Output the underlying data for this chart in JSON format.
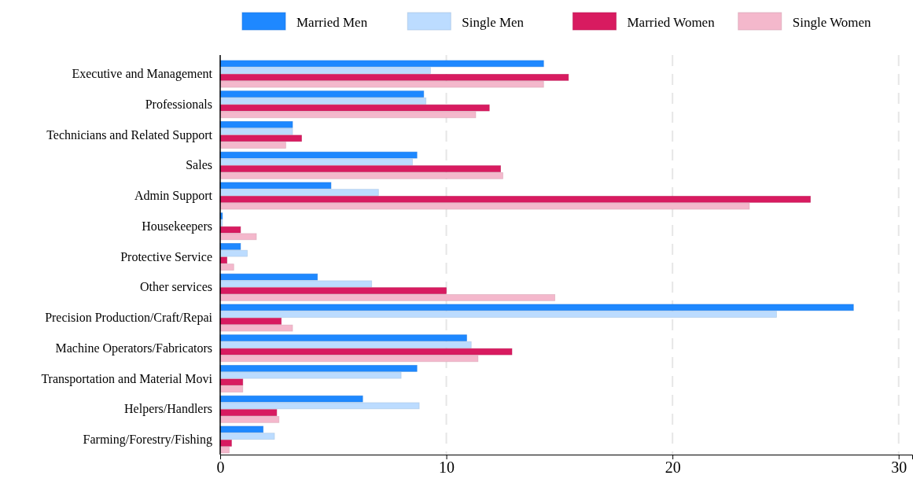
{
  "chart_data": {
    "type": "bar",
    "orientation": "horizontal",
    "categories": [
      "Executive and Management",
      "Professionals",
      "Technicians and Related Support",
      "Sales",
      "Admin Support",
      "Housekeepers",
      "Protective Service",
      "Other services",
      "Precision Production/Craft/Repai",
      "Machine Operators/Fabricators",
      "Transportation and Material Movi",
      "Helpers/Handlers",
      "Farming/Forestry/Fishing"
    ],
    "series": [
      {
        "name": "Married Men",
        "color": "#1e88ff",
        "values": [
          14.3,
          9.0,
          3.2,
          8.7,
          4.9,
          0.1,
          0.9,
          4.3,
          28.0,
          10.9,
          8.7,
          6.3,
          1.9
        ]
      },
      {
        "name": "Single Men",
        "color": "#bcdcff",
        "values": [
          9.3,
          9.1,
          3.2,
          8.5,
          7.0,
          0.1,
          1.2,
          6.7,
          24.6,
          11.1,
          8.0,
          8.8,
          2.4
        ]
      },
      {
        "name": "Married Women",
        "color": "#d81b60",
        "values": [
          15.4,
          11.9,
          3.6,
          12.4,
          26.1,
          0.9,
          0.3,
          10.0,
          2.7,
          12.9,
          1.0,
          2.5,
          0.5
        ]
      },
      {
        "name": "Single Women",
        "color": "#f4b8cc",
        "values": [
          14.3,
          11.3,
          2.9,
          12.5,
          23.4,
          1.6,
          0.6,
          14.8,
          3.2,
          11.4,
          1.0,
          2.6,
          0.4
        ]
      }
    ],
    "xlim": [
      0,
      30.6
    ],
    "xticks": [
      0,
      10,
      20,
      30
    ],
    "grid": "x",
    "legend": "top"
  }
}
